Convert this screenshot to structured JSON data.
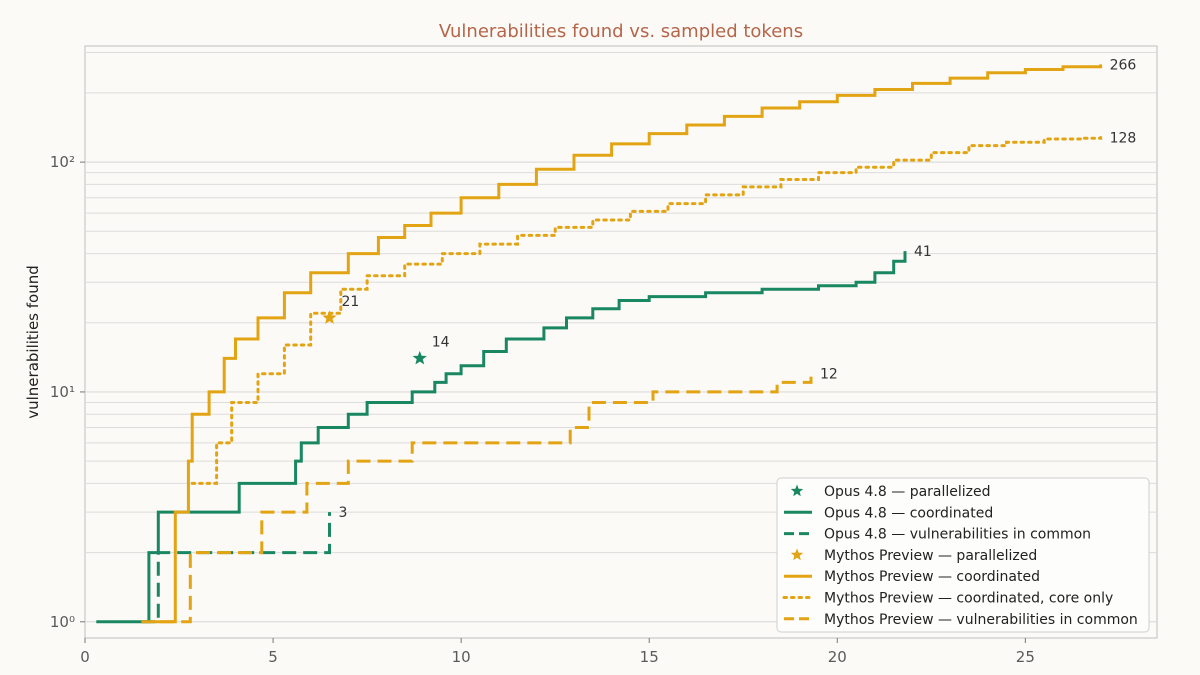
{
  "colors": {
    "background": "#fbfaf6",
    "title": "#b5654a",
    "opus": "#1a8763",
    "mythos": "#e3a413",
    "grid": "#dcdcdc",
    "frame": "#bdbdbd"
  },
  "chart_data": {
    "type": "line",
    "title": "Vulnerabilities found vs. sampled tokens",
    "xlabel": "",
    "ylabel": "vulnerabilities found",
    "xlim": [
      0,
      28.5
    ],
    "ylim": [
      0.85,
      320
    ],
    "yscale": "log",
    "grid": true,
    "legend_position": "bottom-right",
    "x_ticks": [
      0,
      5,
      10,
      15,
      20,
      25
    ],
    "y_ticks": [
      {
        "value": 1,
        "label": "10⁰"
      },
      {
        "value": 10,
        "label": "10¹"
      },
      {
        "value": 100,
        "label": "10²"
      }
    ],
    "series": [
      {
        "name": "Opus 4.8 — parallelized",
        "kind": "star",
        "color": "opus",
        "x": [
          8.9
        ],
        "y": [
          14
        ],
        "label": "14"
      },
      {
        "name": "Opus 4.8 — coordinated",
        "kind": "step",
        "color": "opus",
        "dash": "solid",
        "x": [
          0.3,
          1.7,
          1.95,
          4.1,
          5.6,
          5.75,
          6.2,
          7.0,
          7.5,
          8.7,
          9.3,
          9.6,
          10.0,
          10.6,
          11.2,
          12.2,
          12.8,
          13.5,
          14.2,
          15.0,
          16.5,
          18.0,
          19.5,
          20.5,
          21.0,
          21.5,
          21.8
        ],
        "y": [
          1,
          2,
          3,
          4,
          5,
          6,
          7,
          8,
          9,
          10,
          11,
          12,
          13,
          15,
          17,
          19,
          21,
          23,
          25,
          26,
          27,
          28,
          29,
          30,
          33,
          37,
          41
        ],
        "label": "41"
      },
      {
        "name": "Opus 4.8 — vulnerabilities in common",
        "kind": "step",
        "color": "opus",
        "dash": "long",
        "x": [
          1.5,
          1.95,
          6.5
        ],
        "y": [
          1,
          2,
          3
        ],
        "label": "3"
      },
      {
        "name": "Mythos Preview — parallelized",
        "kind": "star",
        "color": "mythos",
        "x": [
          6.5
        ],
        "y": [
          21
        ],
        "label": "21"
      },
      {
        "name": "Mythos Preview — coordinated",
        "kind": "step",
        "color": "mythos",
        "dash": "solid",
        "x": [
          1.5,
          2.4,
          2.75,
          2.85,
          3.3,
          3.7,
          4.0,
          4.6,
          5.3,
          6.0,
          7.0,
          7.8,
          8.5,
          9.2,
          10.0,
          11.0,
          12.0,
          13.0,
          14.0,
          15.0,
          16.0,
          17.0,
          18.0,
          19.0,
          20.0,
          21.0,
          22.0,
          23.0,
          24.0,
          25.0,
          26.0,
          27.0
        ],
        "y": [
          1,
          3,
          5,
          8,
          10,
          14,
          17,
          21,
          27,
          33,
          40,
          47,
          53,
          60,
          70,
          80,
          93,
          107,
          120,
          133,
          145,
          158,
          172,
          183,
          195,
          207,
          220,
          232,
          245,
          253,
          260,
          266
        ],
        "label": "266"
      },
      {
        "name": "Mythos Preview — coordinated, core only",
        "kind": "step",
        "color": "mythos",
        "dash": "dotted",
        "x": [
          2.85,
          3.5,
          3.9,
          4.6,
          5.3,
          6.0,
          6.8,
          7.5,
          8.5,
          9.5,
          10.5,
          11.5,
          12.5,
          13.5,
          14.5,
          15.5,
          16.5,
          17.5,
          18.5,
          19.5,
          20.5,
          21.5,
          22.5,
          23.5,
          24.5,
          25.5,
          26.5,
          27.0
        ],
        "y": [
          4,
          6,
          9,
          12,
          16,
          22,
          28,
          32,
          36,
          40,
          44,
          48,
          52,
          56,
          61,
          66,
          72,
          78,
          84,
          90,
          95,
          102,
          110,
          118,
          122,
          126,
          127,
          128
        ],
        "label": "128"
      },
      {
        "name": "Mythos Preview — vulnerabilities in common",
        "kind": "step",
        "color": "mythos",
        "dash": "long",
        "x": [
          2.0,
          2.8,
          4.7,
          5.9,
          7.0,
          8.7,
          12.9,
          13.4,
          15.1,
          18.4,
          19.3
        ],
        "y": [
          1,
          2,
          3,
          4,
          5,
          6,
          7,
          9,
          10,
          11,
          12
        ],
        "label": "12"
      }
    ]
  }
}
